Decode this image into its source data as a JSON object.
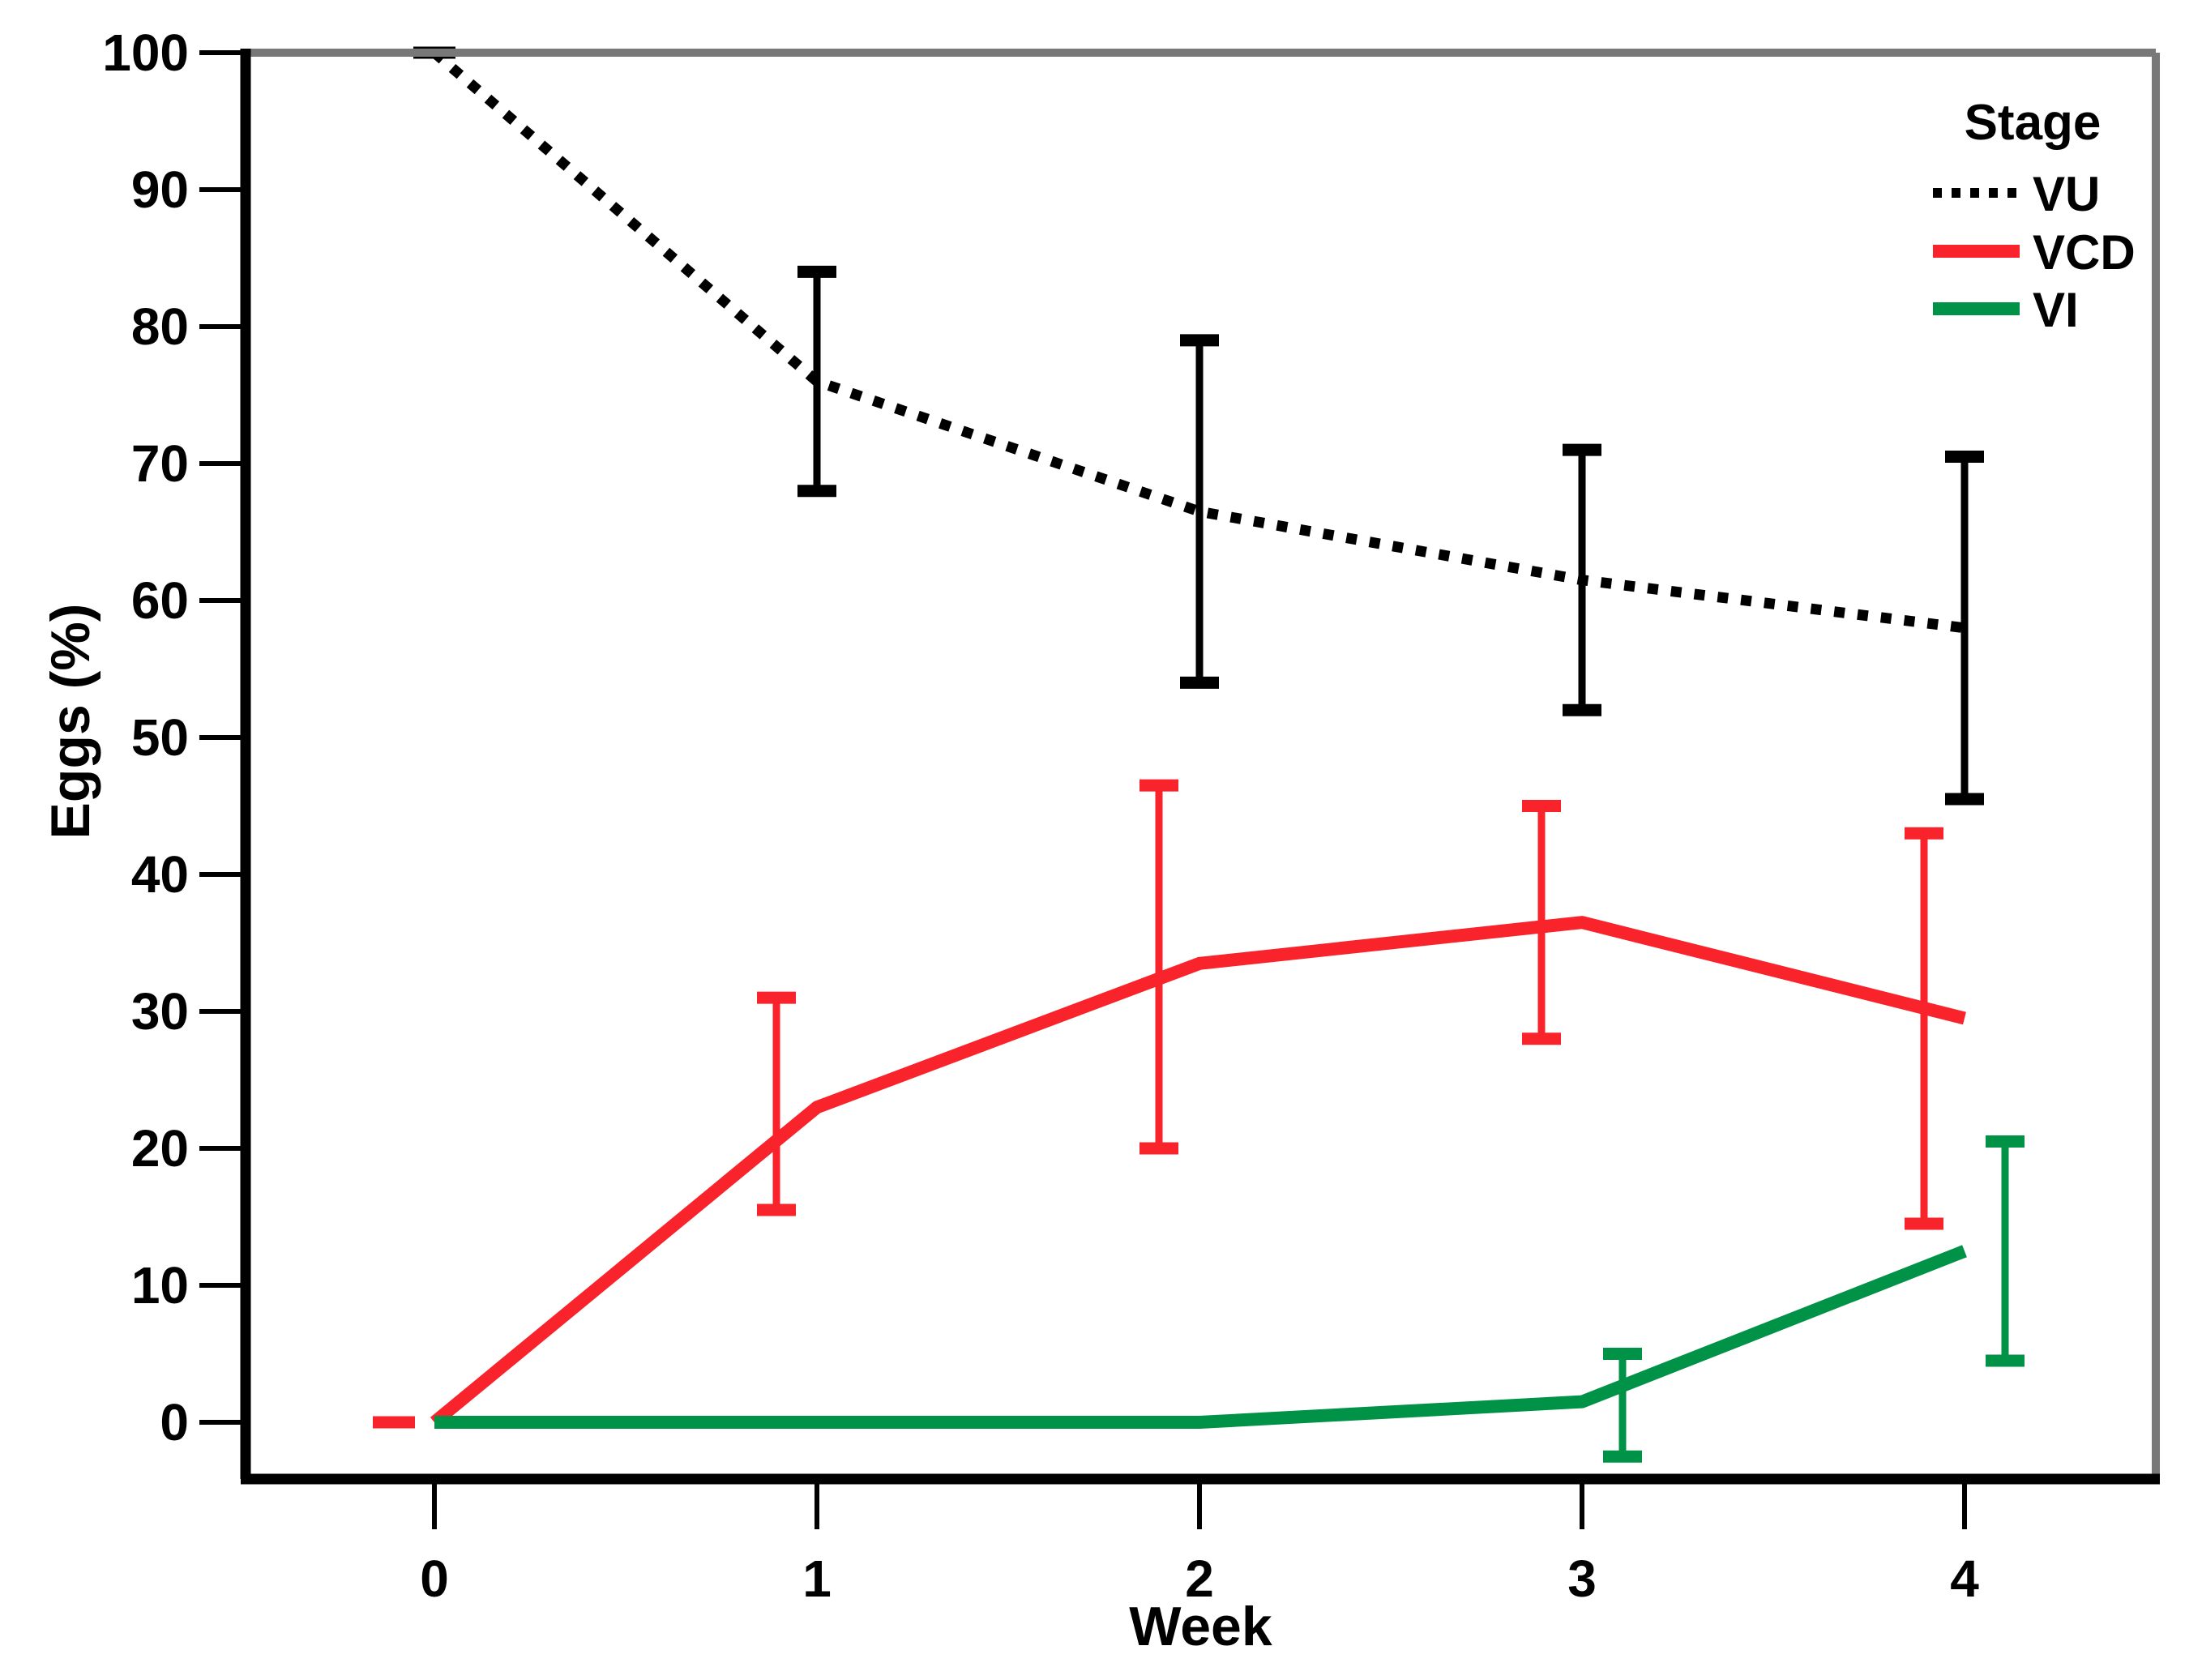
{
  "chart_data": {
    "type": "line",
    "title": "",
    "xlabel": "Week",
    "ylabel": "Eggs (%)",
    "x": [
      0,
      1,
      2,
      3,
      4
    ],
    "x_tick_labels": [
      "0",
      "1",
      "2",
      "3",
      "4"
    ],
    "y_ticks": [
      0,
      10,
      20,
      30,
      40,
      50,
      60,
      70,
      80,
      90,
      100
    ],
    "ylim": [
      -4,
      100
    ],
    "xlim": [
      -0.5,
      4.5
    ],
    "grid": false,
    "legend_position": "top-right-inside",
    "legend_title": "Stage",
    "error_bars": "95% CI, dodged horizontally per series",
    "series": [
      {
        "name": "VU",
        "color": "#000000",
        "line_style": "dotted",
        "values": [
          100,
          76,
          66.5,
          61.5,
          58
        ],
        "ci_low": [
          100,
          68,
          54,
          52,
          45.5
        ],
        "ci_high": [
          100,
          84,
          79,
          71,
          70.5
        ]
      },
      {
        "name": "VCD",
        "color": "#F8232B",
        "line_style": "solid",
        "values": [
          0,
          23,
          33.5,
          36.5,
          29.5
        ],
        "ci_low": [
          0,
          15.5,
          20,
          28,
          14.5
        ],
        "ci_high": [
          0,
          31,
          46.5,
          45,
          43
        ]
      },
      {
        "name": "VI",
        "color": "#009247",
        "line_style": "solid",
        "values": [
          0,
          0,
          0,
          1.5,
          12.5
        ],
        "ci_low": [
          null,
          null,
          null,
          -2.5,
          4.5
        ],
        "ci_high": [
          null,
          null,
          null,
          5,
          20.5
        ]
      }
    ],
    "frame_colors": {
      "left_bottom": "#000000",
      "top_right": "#787878"
    }
  }
}
